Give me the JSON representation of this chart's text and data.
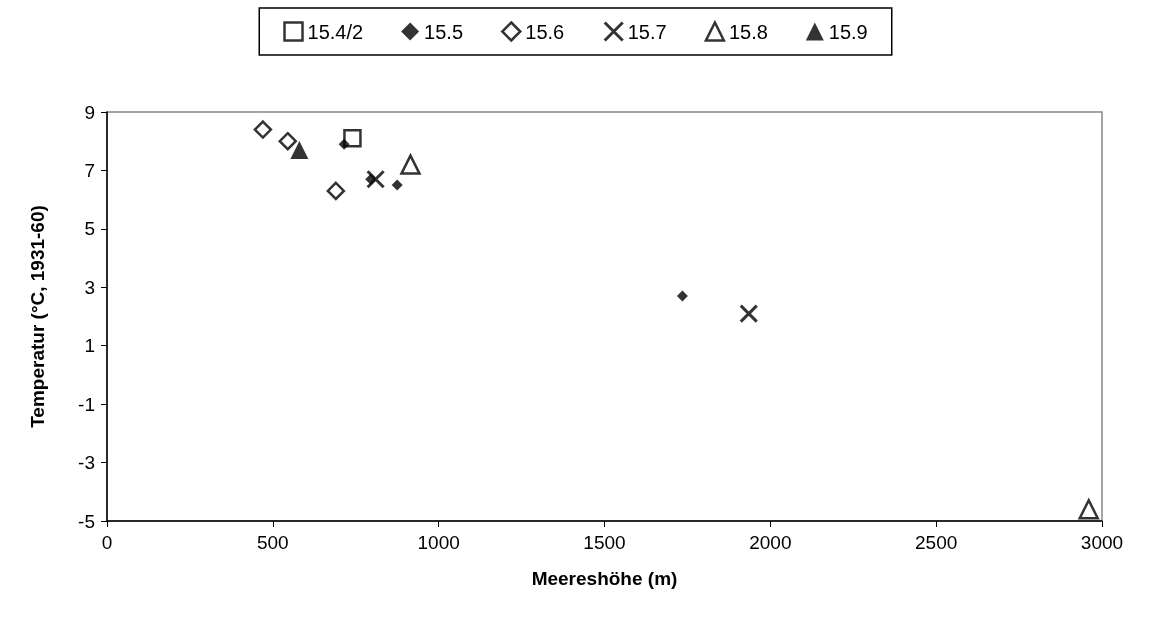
{
  "chart_data": {
    "type": "scatter",
    "xlabel": "Meereshöhe (m)",
    "ylabel": "Temperatur (°C, 1931-60)",
    "xlim": [
      0,
      3000
    ],
    "xticks": [
      0,
      500,
      1000,
      1500,
      2000,
      2500,
      3000
    ],
    "ylim": [
      -5,
      9
    ],
    "yticks": [
      -5,
      -3,
      -1,
      1,
      3,
      5,
      7,
      9
    ],
    "grid": false,
    "legend": "top",
    "series": [
      {
        "name": "15.4/2",
        "marker": "square",
        "x": [
          740
        ],
        "values": [
          8.1
        ]
      },
      {
        "name": "15.5",
        "color": "#000000",
        "marker": "diamond",
        "x": [
          715,
          795,
          875,
          1735
        ],
        "values": [
          7.9,
          6.7,
          6.5,
          2.7
        ]
      },
      {
        "name": "15.6",
        "marker": "diamond",
        "x": [
          470,
          545,
          690
        ],
        "values": [
          8.4,
          8.0,
          6.3
        ]
      },
      {
        "name": "15.7",
        "marker": "cross",
        "x": [
          810,
          1935
        ],
        "values": [
          6.7,
          2.1
        ]
      },
      {
        "name": "15.8",
        "marker": "triangle",
        "x": [
          915,
          2960
        ],
        "values": [
          7.2,
          -4.6
        ]
      },
      {
        "name": "15.9",
        "color": "#000000",
        "marker": "triangle",
        "x": [
          580
        ],
        "values": [
          7.7
        ]
      }
    ]
  }
}
